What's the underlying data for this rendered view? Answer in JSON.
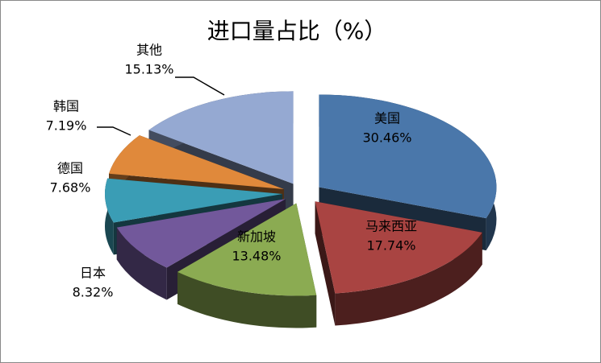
{
  "chart_data": {
    "type": "pie",
    "title": "进口量占比（%）",
    "categories": [
      "美国",
      "马来西亚",
      "新加坡",
      "日本",
      "德国",
      "韩国",
      "其他"
    ],
    "values": [
      30.46,
      17.74,
      13.48,
      8.32,
      7.68,
      7.19,
      15.13
    ],
    "value_labels": [
      "30.46%",
      "17.74%",
      "13.48%",
      "8.32%",
      "7.68%",
      "7.19%",
      "15.13%"
    ],
    "colors": [
      "#4a77aa",
      "#a94442",
      "#8bab52",
      "#72589b",
      "#3a9db5",
      "#e0893b",
      "#95a9d2"
    ]
  }
}
